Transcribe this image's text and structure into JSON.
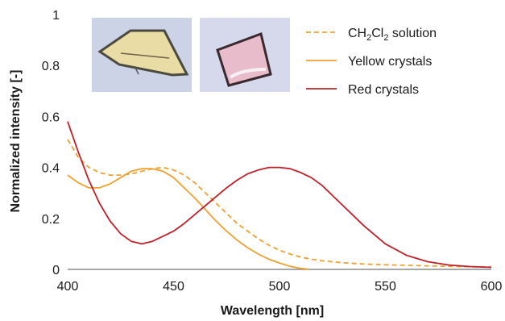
{
  "chart_data": {
    "type": "line",
    "xlabel": "Wavelength [nm]",
    "ylabel": "Normalized intensity [-]",
    "xlim": [
      400,
      600
    ],
    "ylim": [
      0,
      1
    ],
    "xticks": [
      400,
      450,
      500,
      550,
      600
    ],
    "yticks": [
      0,
      0.2,
      0.4,
      0.6,
      0.8,
      1
    ],
    "ytick_labels": [
      "0",
      "0.2",
      "0.4",
      "0.6",
      "0.8",
      "1"
    ],
    "grid": false,
    "legend_position": "top-right",
    "series": [
      {
        "name": "CH2Cl2 solution",
        "name_display": {
          "prefix": "CH",
          "sub1": "2",
          "mid": "Cl",
          "sub2": "2",
          "suffix": " solution"
        },
        "color": "#f0a030",
        "dash": "dashed",
        "x": [
          400,
          405,
          410,
          415,
          420,
          425,
          430,
          435,
          440,
          445,
          450,
          455,
          460,
          465,
          470,
          475,
          480,
          485,
          490,
          495,
          500,
          505,
          510,
          515,
          520,
          530,
          540,
          550,
          560,
          570,
          580,
          590,
          600
        ],
        "y": [
          0.51,
          0.44,
          0.4,
          0.38,
          0.37,
          0.37,
          0.375,
          0.385,
          0.395,
          0.4,
          0.39,
          0.37,
          0.34,
          0.3,
          0.26,
          0.22,
          0.18,
          0.15,
          0.12,
          0.095,
          0.075,
          0.06,
          0.048,
          0.04,
          0.034,
          0.026,
          0.021,
          0.018,
          0.016,
          0.014,
          0.012,
          0.01,
          0.01
        ]
      },
      {
        "name": "Yellow crystals",
        "color": "#f0a030",
        "dash": "solid",
        "x": [
          400,
          405,
          410,
          415,
          420,
          425,
          430,
          435,
          440,
          445,
          450,
          455,
          460,
          465,
          470,
          475,
          480,
          485,
          490,
          495,
          500,
          505,
          510,
          514
        ],
        "y": [
          0.37,
          0.34,
          0.32,
          0.32,
          0.335,
          0.36,
          0.385,
          0.395,
          0.395,
          0.385,
          0.36,
          0.32,
          0.28,
          0.235,
          0.19,
          0.15,
          0.115,
          0.085,
          0.06,
          0.04,
          0.025,
          0.012,
          0.004,
          0
        ]
      },
      {
        "name": "Red crystals",
        "color": "#c0202a",
        "dash": "solid",
        "x": [
          400,
          405,
          410,
          415,
          420,
          425,
          430,
          435,
          440,
          445,
          450,
          455,
          460,
          465,
          470,
          475,
          480,
          485,
          490,
          495,
          500,
          505,
          510,
          515,
          520,
          525,
          530,
          540,
          550,
          560,
          570,
          580,
          590,
          600
        ],
        "y": [
          0.58,
          0.46,
          0.35,
          0.26,
          0.19,
          0.14,
          0.11,
          0.1,
          0.11,
          0.13,
          0.15,
          0.18,
          0.215,
          0.25,
          0.285,
          0.32,
          0.35,
          0.375,
          0.39,
          0.4,
          0.4,
          0.395,
          0.38,
          0.36,
          0.33,
          0.29,
          0.25,
          0.17,
          0.1,
          0.055,
          0.03,
          0.017,
          0.011,
          0.008
        ]
      }
    ]
  },
  "insets": [
    {
      "label": "yellow-crystal-photo",
      "background": "#ccd3e6",
      "crystal_fill": "#e9dca4",
      "crystal_edge": "#4a4a40"
    },
    {
      "label": "red-crystal-photo",
      "background": "#d6d9ec",
      "crystal_fill": "#e8bccb",
      "crystal_edge": "#3a2a30"
    }
  ]
}
